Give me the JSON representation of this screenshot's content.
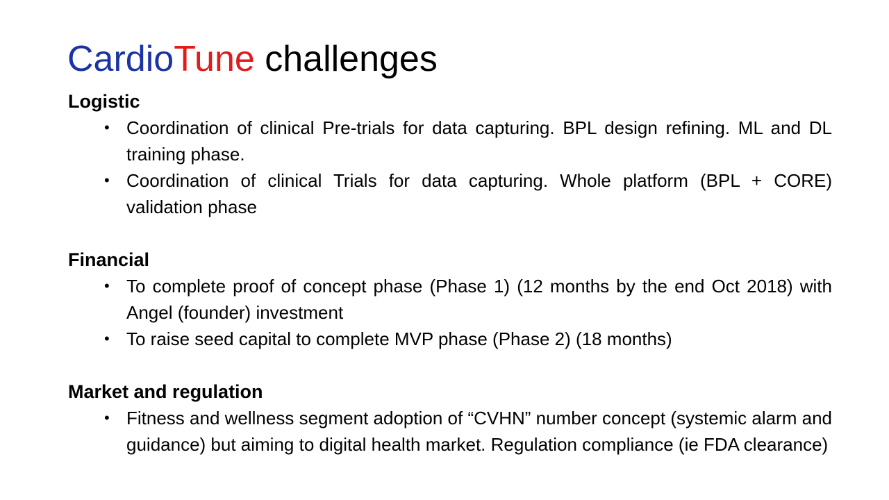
{
  "title": {
    "part1": "Cardio",
    "part2": "Tune",
    "part3": " challenges",
    "colors": {
      "part1": "#1a33a5",
      "part2": "#e01c1c",
      "part3": "#000000"
    }
  },
  "sections": [
    {
      "heading": "Logistic",
      "bullets": [
        "Coordination of clinical Pre-trials for data capturing. BPL design refining. ML and DL training phase.",
        "Coordination of clinical Trials for data capturing. Whole platform (BPL + CORE) validation phase"
      ]
    },
    {
      "heading": "Financial",
      "bullets": [
        "To complete proof of concept phase (Phase 1) (12 months by the end Oct 2018) with Angel (founder) investment",
        "To raise seed capital to complete MVP phase (Phase 2) (18 months)"
      ]
    },
    {
      "heading": "Market and regulation",
      "bullets": [
        "Fitness and wellness segment adoption of “CVHN” number concept (systemic alarm and guidance) but aiming to digital health market. Regulation compliance (ie FDA clearance)"
      ]
    }
  ],
  "bullet_glyph": "•"
}
